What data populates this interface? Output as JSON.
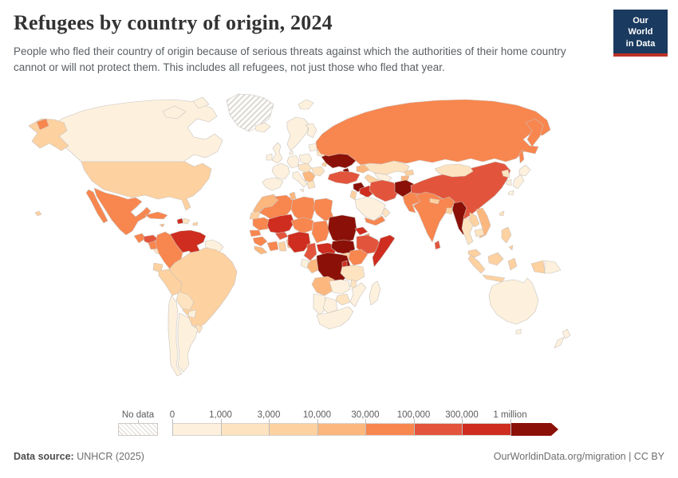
{
  "header": {
    "title": "Refugees by country of origin, 2024",
    "subtitle": "People who fled their country of origin because of serious threats against which the authorities of their home country cannot or will not protect them. This includes all refugees, not just those who fled that year.",
    "logo": {
      "line1": "Our World",
      "line2": "in Data",
      "bg_color": "#1a3a5f",
      "accent_color": "#bc3226"
    }
  },
  "footer": {
    "source_label": "Data source:",
    "source_value": "UNHCR (2025)",
    "attribution": "OurWorldinData.org/migration | CC BY"
  },
  "map": {
    "ocean_color": "#ffffff",
    "border_color": "#c9c2bc",
    "no_data": {
      "label": "No data",
      "hatch_color": "#dcd7d2"
    },
    "legend": {
      "ticks": [
        "0",
        "1,000",
        "3,000",
        "10,000",
        "30,000",
        "100,000",
        "300,000",
        "1 million"
      ],
      "bins": [
        {
          "id": "b0",
          "range": "0–1,000",
          "color": "#fdf1de"
        },
        {
          "id": "b1",
          "range": "1,000–3,000",
          "color": "#fde3c0"
        },
        {
          "id": "b2",
          "range": "3,000–10,000",
          "color": "#fdd1a0"
        },
        {
          "id": "b3",
          "range": "10,000–30,000",
          "color": "#fcb77e"
        },
        {
          "id": "b4",
          "range": "30,000–100,000",
          "color": "#f8864f"
        },
        {
          "id": "b5",
          "range": "100,000–300,000",
          "color": "#e2553c"
        },
        {
          "id": "b6",
          "range": "300,000–1 million",
          "color": "#ce2d1f"
        },
        {
          "id": "b7",
          "range": "1 million and more",
          "color": "#8b1007"
        }
      ]
    },
    "countries": {
      "greenland": "nodata",
      "canada": "b0",
      "usa": "b2",
      "hawaii": "b2",
      "russia-wrap": "b4",
      "mexico": "b4",
      "guatemala": "b4",
      "honduras": "b5",
      "nicaragua": "b4",
      "panama": "b1",
      "cuba": "b4",
      "jamaica": "b3",
      "haiti": "b6",
      "dominican-republic": "b1",
      "puerto-rico": "b2",
      "venezuela": "b6",
      "colombia": "b4",
      "ecuador": "b2",
      "peru": "b2",
      "brazil": "b2",
      "bolivia": "b1",
      "paraguay": "b0",
      "uruguay": "b1",
      "chile": "b0",
      "argentina": "b0",
      "guyanas": "b0",
      "iceland": "b0",
      "svalbard": "b0",
      "uk": "b0",
      "ireland": "b0",
      "scandinavia": "b0",
      "finland": "b0",
      "denmark": "b0",
      "france": "b0",
      "spain": "b0",
      "germany": "b0",
      "italy": "b0",
      "poland": "b0",
      "central-europe": "b1",
      "balkans": "b3",
      "greece": "b1",
      "romania-bulgaria": "b1",
      "baltics": "b0",
      "belarus": "b1",
      "moldova": "b2",
      "ukraine": "b7",
      "russia": "b4",
      "kazakhstan": "b1",
      "uzbekistan": "b0",
      "turkmenistan": "b2",
      "kyrgyzstan": "b2",
      "tajikistan": "b3",
      "caucasus": "b3",
      "turkey": "b5",
      "syria": "b7",
      "iraq": "b6",
      "iran": "b5",
      "levant": "b2",
      "saudi-arabia": "b0",
      "yemen": "b4",
      "oman": "b1",
      "afghanistan": "b7",
      "pakistan": "b4",
      "india": "b4",
      "nepal": "b2",
      "bangladesh": "b2",
      "sri-lanka": "b5",
      "china": "b5",
      "mongolia": "b1",
      "myanmar": "b7",
      "thailand": "b1",
      "laos": "b2",
      "vietnam": "b3",
      "cambodia": "b1",
      "malaysia": "b2",
      "indonesia": "b2",
      "philippines": "b2",
      "taiwan": "b1",
      "japan": "b0",
      "south-korea": "b0",
      "north-korea": "b1",
      "morocco": "b3",
      "western-sahara": "b2",
      "algeria": "b4",
      "tunisia": "b3",
      "libya": "b4",
      "egypt": "b4",
      "mauritania": "b4",
      "senegal": "b4",
      "guinea": "b4",
      "sierra-leone": "b3",
      "mali": "b6",
      "burkina-faso": "b5",
      "ivory-coast": "b4",
      "ghana": "b2",
      "togo-benin": "b3",
      "niger": "b4",
      "nigeria": "b6",
      "chad": "b4",
      "sudan": "b7",
      "eritrea": "b6",
      "djibouti": "b4",
      "south-sudan": "b7",
      "ethiopia": "b5",
      "somalia": "b6",
      "central-african-republic": "b6",
      "cameroon": "b5",
      "drc": "b7",
      "congo": "b3",
      "gabon": "b0",
      "uganda": "b2",
      "kenya": "b4",
      "rwanda-burundi": "b6",
      "tanzania": "b1",
      "angola": "b3",
      "zambia": "b0",
      "malawi": "b1",
      "mozambique": "b0",
      "zimbabwe": "b1",
      "namibia": "b0",
      "botswana": "b0",
      "south-africa": "b0",
      "madagascar": "b0",
      "australia": "b0",
      "tasmania": "b0",
      "new-zealand": "b0",
      "png": "b0"
    }
  },
  "chart_data": {
    "type": "choropleth",
    "title": "Refugees by country of origin, 2024",
    "subtitle": "People who fled their country of origin because of serious threats against which the authorities of their home country cannot or will not protect them. This includes all refugees, not just those who fled that year.",
    "source": "UNHCR (2025)",
    "legend_ticks": [
      "0",
      "1,000",
      "3,000",
      "10,000",
      "30,000",
      "100,000",
      "300,000",
      "1 million"
    ],
    "legend_colors": [
      "#fdf1de",
      "#fde3c0",
      "#fdd1a0",
      "#fcb77e",
      "#f8864f",
      "#e2553c",
      "#ce2d1f",
      "#8b1007"
    ],
    "no_data_regions": [
      "Greenland"
    ],
    "values_by_bin": {
      "1 million and more": [
        "Ukraine",
        "Syria",
        "Afghanistan",
        "Myanmar",
        "Sudan",
        "South Sudan",
        "Democratic Republic of Congo"
      ],
      "300,000-1 million": [
        "Venezuela",
        "Haiti",
        "Iraq",
        "Mali",
        "Nigeria",
        "Central African Republic",
        "Somalia",
        "Eritrea",
        "Burundi"
      ],
      "100,000-300,000": [
        "Turkey",
        "Iran",
        "China",
        "Ethiopia",
        "Cameroon",
        "Burkina Faso",
        "Sri Lanka",
        "Honduras"
      ],
      "30,000-100,000": [
        "Mexico",
        "Colombia",
        "Russia",
        "India",
        "Pakistan",
        "Egypt",
        "Algeria",
        "Libya",
        "Chad",
        "Niger",
        "Mauritania",
        "Senegal",
        "Guinea",
        "Ivory Coast",
        "Kenya",
        "Yemen",
        "Cuba",
        "Guatemala",
        "Nicaragua",
        "Djibouti"
      ],
      "10,000-30,000": [
        "Morocco",
        "Tunisia",
        "Vietnam",
        "Tajikistan",
        "Serbia and Balkans",
        "Jamaica",
        "Sierra Leone",
        "Liberia",
        "Togo",
        "Benin",
        "Caucasus states"
      ],
      "3,000-10,000": [
        "United States",
        "Brazil",
        "Peru",
        "Ecuador",
        "Indonesia",
        "Malaysia",
        "Philippines",
        "Ghana",
        "Uganda",
        "Nepal",
        "Bangladesh",
        "Turkmenistan",
        "Kyrgyzstan",
        "Moldova",
        "Western Sahara"
      ],
      "1,000-3,000": [
        "Kazakhstan",
        "Mongolia",
        "Belarus",
        "Bolivia",
        "Uruguay",
        "Thailand",
        "Cambodia",
        "Tanzania",
        "Malawi",
        "Zimbabwe",
        "North Korea",
        "Dominican Republic",
        "Greece",
        "Romania",
        "Bulgaria",
        "Hungary",
        "Austria",
        "Oman",
        "Taiwan",
        "Panama"
      ],
      "0-1,000": [
        "Canada",
        "Australia",
        "Japan",
        "South Korea",
        "New Zealand",
        "Argentina",
        "Chile",
        "Paraguay",
        "United Kingdom",
        "Ireland",
        "France",
        "Spain",
        "Germany",
        "Italy",
        "Poland",
        "Scandinavia",
        "Iceland",
        "Saudi Arabia",
        "South Africa",
        "Botswana",
        "Namibia",
        "Zambia",
        "Mozambique",
        "Madagascar",
        "Papua New Guinea",
        "Gabon",
        "Uzbekistan",
        "Guyana",
        "Suriname"
      ]
    }
  }
}
